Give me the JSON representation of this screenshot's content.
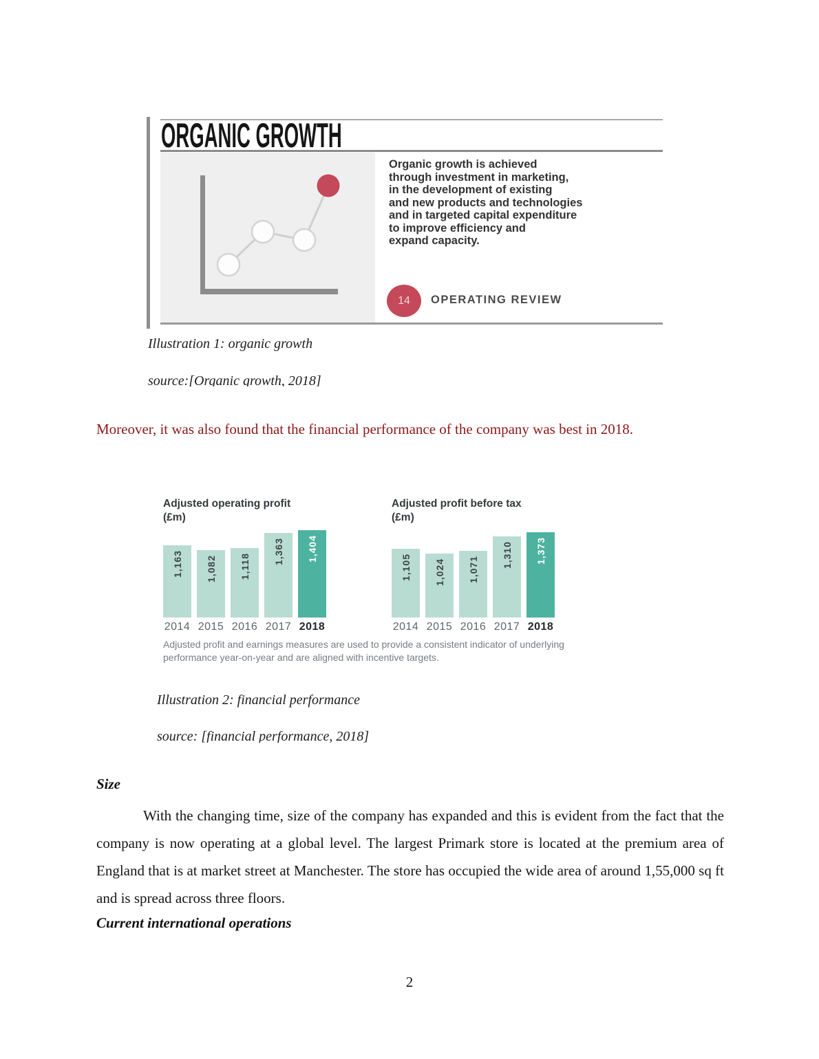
{
  "figure1": {
    "title": "ORGANIC GROWTH",
    "description": "Organic growth is achieved\nthrough investment in marketing,\nin the development of existing\nand new products and technologies\nand in targeted capital expenditure\nto improve efficiency and\nexpand capacity.",
    "badge_number": "14",
    "badge_label": "OPERATING REVIEW",
    "colors": {
      "accent_red": "#c5495a",
      "panel_gray": "#f0eff0",
      "axis_gray": "#8c8c8c"
    }
  },
  "captions": {
    "illustration1": "Illustration 1: organic growth",
    "source1": "source:[Organic growth, 2018]",
    "illustration2": "Illustration 2: financial performance",
    "source2": "source: [financial performance, 2018]"
  },
  "red_note": {
    "text": "Moreover, it was also found that the financial performance of the company was best in 2018.",
    "color": "#8e1818"
  },
  "chart_data": [
    {
      "type": "bar",
      "title": "Adjusted operating profit\n(£m)",
      "categories": [
        "2014",
        "2015",
        "2016",
        "2017",
        "2018"
      ],
      "values": [
        1163,
        1082,
        1118,
        1363,
        1404
      ],
      "labels": [
        "1,163",
        "1,082",
        "1,118",
        "1,363",
        "1,404"
      ],
      "highlight_index": 4,
      "bar_color": "#b9dcd2",
      "highlight_color": "#4db3a0",
      "ylim": [
        0,
        1404
      ],
      "grid": false,
      "legend": "none"
    },
    {
      "type": "bar",
      "title": "Adjusted profit before tax\n(£m)",
      "categories": [
        "2014",
        "2015",
        "2016",
        "2017",
        "2018"
      ],
      "values": [
        1105,
        1024,
        1071,
        1310,
        1373
      ],
      "labels": [
        "1,105",
        "1,024",
        "1,071",
        "1,310",
        "1,373"
      ],
      "highlight_index": 4,
      "bar_color": "#b9dcd2",
      "highlight_color": "#4db3a0",
      "ylim": [
        0,
        1404
      ],
      "grid": false,
      "legend": "none"
    }
  ],
  "figure2": {
    "footnote": "Adjusted profit and earnings measures are used to provide a consistent indicator of underlying\nperformance year-on-year and are aligned with incentive targets."
  },
  "body": {
    "heading_size": "Size",
    "paragraph": "With the changing time, size of the company has expanded and this is evident from the fact that the company is now operating at a global level. The largest Primark store is located at the premium area of England that is at market street at Manchester. The store has occupied the wide area of around 1,55,000 sq ft and is spread across three floors.",
    "heading_operations": "Current international operations"
  },
  "page": {
    "number": "2"
  }
}
